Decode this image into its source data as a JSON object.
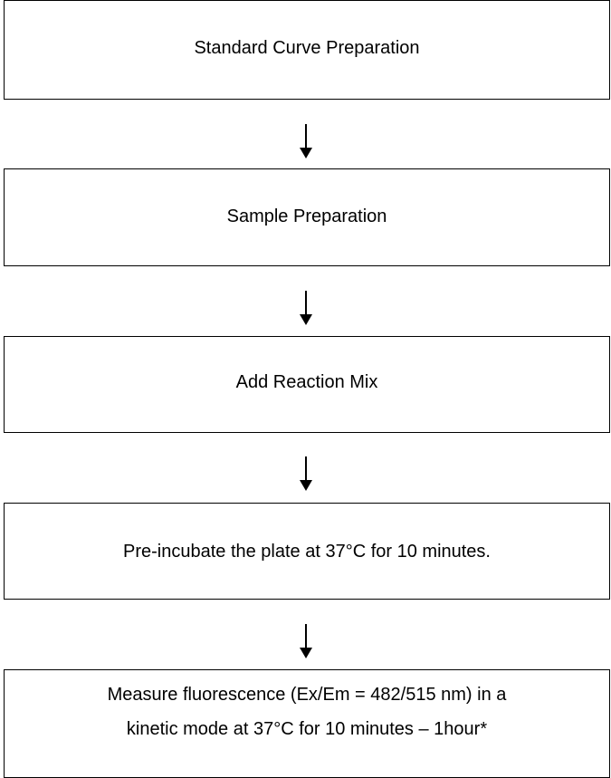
{
  "steps": [
    {
      "label": "Standard Curve Preparation"
    },
    {
      "label": "Sample Preparation"
    },
    {
      "label": "Add Reaction Mix"
    },
    {
      "label": "Pre-incubate the plate at 37°C for 10 minutes."
    },
    {
      "label_lines": [
        "Measure fluorescence (Ex/Em = 482/515 nm) in a",
        "kinetic mode at 37°C for 10 minutes – 1hour*"
      ]
    }
  ],
  "colors": {
    "line": "#000000",
    "background": "#ffffff"
  }
}
